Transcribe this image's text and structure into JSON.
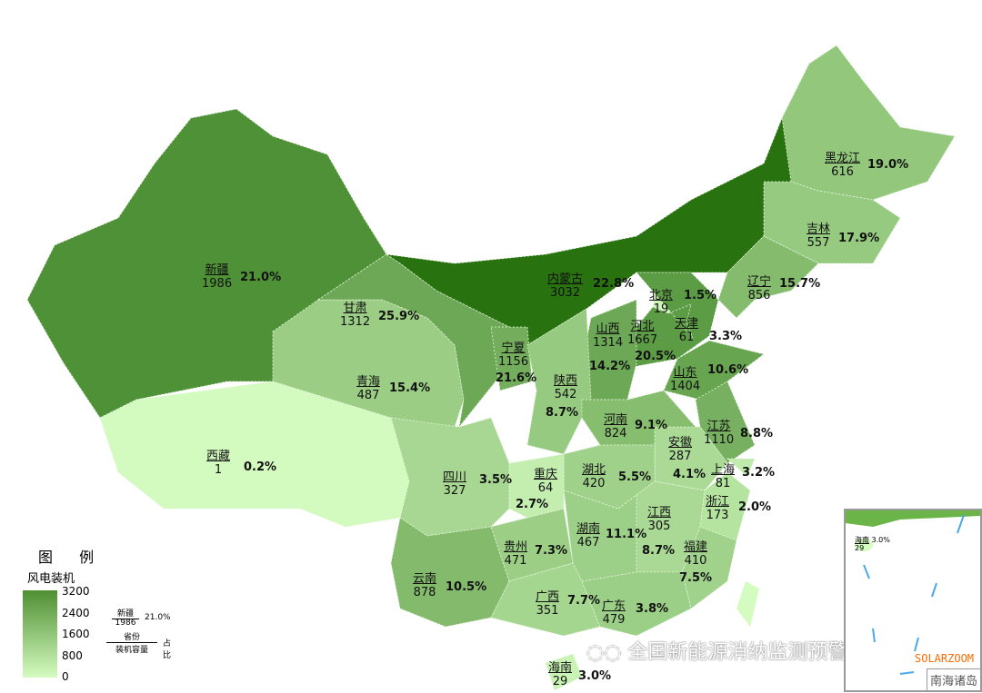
{
  "legend": {
    "title": "图 例",
    "subtitle": "风电装机",
    "ticks": [
      "3200",
      "2400",
      "1600",
      "800",
      "0"
    ],
    "example": {
      "name": "新疆",
      "value": "1986",
      "pct": "21.0%",
      "province_label": "省份",
      "capacity_label": "装机容量",
      "share_label": "占比"
    },
    "color_min": "#d4fbc0",
    "color_max": "#236e0a",
    "range": [
      0,
      3200
    ]
  },
  "provinces": [
    {
      "name": "新疆",
      "value": "1986",
      "pct": "21.0%"
    },
    {
      "name": "西藏",
      "value": "1",
      "pct": "0.2%"
    },
    {
      "name": "青海",
      "value": "487",
      "pct": "15.4%"
    },
    {
      "name": "甘肃",
      "value": "1312",
      "pct": "25.9%"
    },
    {
      "name": "内蒙古",
      "value": "3032",
      "pct": "22.8%"
    },
    {
      "name": "黑龙江",
      "value": "616",
      "pct": "19.0%"
    },
    {
      "name": "吉林",
      "value": "557",
      "pct": "17.9%"
    },
    {
      "name": "辽宁",
      "value": "856",
      "pct": "15.7%"
    },
    {
      "name": "北京",
      "value": "19",
      "pct": "1.5%"
    },
    {
      "name": "天津",
      "value": "61",
      "pct": "3.3%"
    },
    {
      "name": "河北",
      "value": "1667",
      "pct": "20.5%"
    },
    {
      "name": "山西",
      "value": "1314",
      "pct": "14.2%"
    },
    {
      "name": "山东",
      "value": "1404",
      "pct": "10.6%"
    },
    {
      "name": "宁夏",
      "value": "1156",
      "pct": "21.6%"
    },
    {
      "name": "陕西",
      "value": "542",
      "pct": "8.7%"
    },
    {
      "name": "河南",
      "value": "824",
      "pct": "9.1%"
    },
    {
      "name": "江苏",
      "value": "1110",
      "pct": "8.8%"
    },
    {
      "name": "安徽",
      "value": "287",
      "pct": "4.1%"
    },
    {
      "name": "上海",
      "value": "81",
      "pct": "3.2%"
    },
    {
      "name": "浙江",
      "value": "173",
      "pct": "2.0%"
    },
    {
      "name": "湖北",
      "value": "420",
      "pct": "5.5%"
    },
    {
      "name": "重庆",
      "value": "64",
      "pct": "2.7%"
    },
    {
      "name": "四川",
      "value": "327",
      "pct": "3.5%"
    },
    {
      "name": "云南",
      "value": "878",
      "pct": "10.5%"
    },
    {
      "name": "贵州",
      "value": "471",
      "pct": "7.3%"
    },
    {
      "name": "湖南",
      "value": "467",
      "pct": "11.1%"
    },
    {
      "name": "江西",
      "value": "305",
      "pct": "8.7%"
    },
    {
      "name": "福建",
      "value": "410",
      "pct": "7.5%"
    },
    {
      "name": "广西",
      "value": "351",
      "pct": "7.7%"
    },
    {
      "name": "广东",
      "value": "479",
      "pct": "3.8%"
    },
    {
      "name": "海南",
      "value": "29",
      "pct": "3.0%"
    }
  ],
  "inset": {
    "title": "南海诸岛",
    "hainan": {
      "name": "海南",
      "value": "29",
      "pct": "3.0%"
    }
  },
  "watermark": "全国新能源消纳监测预警中心",
  "brand": "SOLARZOOM"
}
